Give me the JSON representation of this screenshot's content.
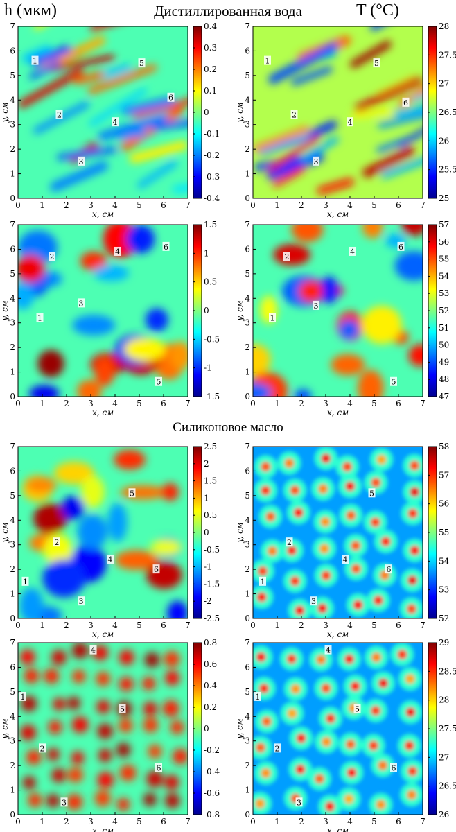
{
  "header": {
    "left_label": "h (мкм)",
    "section_water": "Дистиллированная вода",
    "right_label": "T (°C)",
    "section_oil": "Силиконовое масло"
  },
  "colors": {
    "colormap": [
      "#00008f",
      "#0000ff",
      "#0080ff",
      "#00ffff",
      "#80ff80",
      "#ffff00",
      "#ff8000",
      "#ff0000",
      "#800000"
    ],
    "frame": "#000000",
    "marker_fill": "#ffffff"
  },
  "chart_data": [
    {
      "type": "heatmap",
      "row": 1,
      "col": 1,
      "xlabel": "x, см",
      "ylabel": "y, см",
      "xlim": [
        0,
        7
      ],
      "ylim": [
        0,
        7
      ],
      "xticks": [
        "0",
        "1",
        "2",
        "3",
        "4",
        "5",
        "6",
        "7"
      ],
      "yticks": [
        "0",
        "1",
        "2",
        "3",
        "4",
        "5",
        "6",
        "7"
      ],
      "colorbar_ticks": [
        "0.4",
        "0.3",
        "0.2",
        "0.1",
        "0",
        "-0.1",
        "-0.2",
        "-0.3",
        "-0.4"
      ],
      "clim": [
        -0.4,
        0.4
      ],
      "pattern": "stripes",
      "markers": [
        {
          "label": "1",
          "x": 0.7,
          "y": 5.6
        },
        {
          "label": "2",
          "x": 1.7,
          "y": 3.4
        },
        {
          "label": "3",
          "x": 2.6,
          "y": 1.5
        },
        {
          "label": "4",
          "x": 4.0,
          "y": 3.1
        },
        {
          "label": "5",
          "x": 5.1,
          "y": 5.5
        },
        {
          "label": "6",
          "x": 6.3,
          "y": 4.1
        }
      ]
    },
    {
      "type": "heatmap",
      "row": 1,
      "col": 2,
      "xlabel": "x, см",
      "ylabel": "y, см",
      "xlim": [
        0,
        7
      ],
      "ylim": [
        0,
        7
      ],
      "xticks": [
        "0",
        "1",
        "2",
        "3",
        "4",
        "5",
        "6",
        "7"
      ],
      "yticks": [
        "0",
        "1",
        "2",
        "3",
        "4",
        "5",
        "6",
        "7"
      ],
      "colorbar_ticks": [
        "28",
        "27.5",
        "27",
        "26.5",
        "26",
        "25.5",
        "25"
      ],
      "clim": [
        25,
        28
      ],
      "pattern": "stripes",
      "markers": [
        {
          "label": "1",
          "x": 0.6,
          "y": 5.6
        },
        {
          "label": "2",
          "x": 1.7,
          "y": 3.4
        },
        {
          "label": "3",
          "x": 2.6,
          "y": 1.5
        },
        {
          "label": "4",
          "x": 4.0,
          "y": 3.1
        },
        {
          "label": "5",
          "x": 5.1,
          "y": 5.5
        },
        {
          "label": "6",
          "x": 6.3,
          "y": 3.9
        }
      ]
    },
    {
      "type": "heatmap",
      "row": 2,
      "col": 1,
      "xlabel": "x, см",
      "ylabel": "y, см",
      "xlim": [
        0,
        7
      ],
      "ylim": [
        0,
        7
      ],
      "xticks": [
        "0",
        "1",
        "2",
        "3",
        "4",
        "5",
        "6",
        "7"
      ],
      "yticks": [
        "0",
        "1",
        "2",
        "3",
        "4",
        "5",
        "6",
        "7"
      ],
      "colorbar_ticks": [
        "1.5",
        "1",
        "0.5",
        "0",
        "-0.5",
        "-1",
        "-1.5"
      ],
      "clim": [
        -1.5,
        1.5
      ],
      "pattern": "blobs",
      "markers": [
        {
          "label": "1",
          "x": 0.9,
          "y": 3.2
        },
        {
          "label": "2",
          "x": 1.4,
          "y": 5.7
        },
        {
          "label": "3",
          "x": 2.6,
          "y": 3.8
        },
        {
          "label": "4",
          "x": 4.1,
          "y": 5.9
        },
        {
          "label": "5",
          "x": 5.8,
          "y": 0.6
        },
        {
          "label": "6",
          "x": 6.1,
          "y": 6.1
        }
      ]
    },
    {
      "type": "heatmap",
      "row": 2,
      "col": 2,
      "xlabel": "x, см",
      "ylabel": "y, см",
      "xlim": [
        0,
        7
      ],
      "ylim": [
        0,
        7
      ],
      "xticks": [
        "0",
        "1",
        "2",
        "3",
        "4",
        "5",
        "6",
        "7"
      ],
      "yticks": [
        "0",
        "1",
        "2",
        "3",
        "4",
        "5",
        "6",
        "7"
      ],
      "colorbar_ticks": [
        "57",
        "56",
        "55",
        "54",
        "53",
        "52",
        "51",
        "50",
        "49",
        "48",
        "47"
      ],
      "clim": [
        47,
        57
      ],
      "pattern": "blobs",
      "markers": [
        {
          "label": "1",
          "x": 0.8,
          "y": 3.2
        },
        {
          "label": "2",
          "x": 1.4,
          "y": 5.7
        },
        {
          "label": "3",
          "x": 2.6,
          "y": 3.7
        },
        {
          "label": "4",
          "x": 4.1,
          "y": 5.9
        },
        {
          "label": "5",
          "x": 5.8,
          "y": 0.6
        },
        {
          "label": "6",
          "x": 6.1,
          "y": 6.1
        }
      ]
    },
    {
      "type": "heatmap",
      "row": 3,
      "col": 1,
      "xlabel": "x, см",
      "ylabel": "y, см",
      "xlim": [
        0,
        7
      ],
      "ylim": [
        0,
        7
      ],
      "xticks": [
        "0",
        "1",
        "2",
        "3",
        "4",
        "5",
        "6",
        "7"
      ],
      "yticks": [
        "0",
        "1",
        "2",
        "3",
        "4",
        "5",
        "6",
        "7"
      ],
      "colorbar_ticks": [
        "2.5",
        "2",
        "1.5",
        "1",
        "0.5",
        "0",
        "-0.5",
        "-1",
        "-1.5",
        "-2",
        "-2.5"
      ],
      "clim": [
        -2.5,
        2.5
      ],
      "pattern": "blobs",
      "markers": [
        {
          "label": "1",
          "x": 0.3,
          "y": 1.5
        },
        {
          "label": "2",
          "x": 1.6,
          "y": 3.1
        },
        {
          "label": "3",
          "x": 2.6,
          "y": 0.7
        },
        {
          "label": "4",
          "x": 3.8,
          "y": 2.4
        },
        {
          "label": "5",
          "x": 4.7,
          "y": 5.1
        },
        {
          "label": "6",
          "x": 5.7,
          "y": 2.0
        }
      ]
    },
    {
      "type": "heatmap",
      "row": 3,
      "col": 2,
      "xlabel": "x, см",
      "ylabel": "y, см",
      "xlim": [
        0,
        7
      ],
      "ylim": [
        0,
        7
      ],
      "xticks": [
        "0",
        "1",
        "2",
        "3",
        "4",
        "5",
        "6",
        "7"
      ],
      "yticks": [
        "0",
        "1",
        "2",
        "3",
        "4",
        "5",
        "6",
        "7"
      ],
      "colorbar_ticks": [
        "58",
        "57",
        "56",
        "55",
        "54",
        "53",
        "52"
      ],
      "clim": [
        52,
        58
      ],
      "pattern": "cells",
      "markers": [
        {
          "label": "1",
          "x": 0.4,
          "y": 1.5
        },
        {
          "label": "2",
          "x": 1.5,
          "y": 3.1
        },
        {
          "label": "3",
          "x": 2.5,
          "y": 0.7
        },
        {
          "label": "4",
          "x": 3.8,
          "y": 2.4
        },
        {
          "label": "5",
          "x": 4.9,
          "y": 5.1
        },
        {
          "label": "6",
          "x": 5.6,
          "y": 2.0
        }
      ]
    },
    {
      "type": "heatmap",
      "row": 4,
      "col": 1,
      "xlabel": "x, см",
      "ylabel": "y, см",
      "xlim": [
        0,
        7
      ],
      "ylim": [
        0,
        7
      ],
      "xticks": [
        "0",
        "1",
        "2",
        "3",
        "4",
        "5",
        "6",
        "7"
      ],
      "yticks": [
        "0",
        "1",
        "2",
        "3",
        "4",
        "5",
        "6",
        "7"
      ],
      "colorbar_ticks": [
        "0.8",
        "0.6",
        "0.4",
        "0.2",
        "0",
        "-0.2",
        "-0.4",
        "-0.6",
        "-0.8"
      ],
      "clim": [
        -0.8,
        0.8
      ],
      "pattern": "dots",
      "markers": [
        {
          "label": "1",
          "x": 0.2,
          "y": 4.8
        },
        {
          "label": "2",
          "x": 1.0,
          "y": 2.7
        },
        {
          "label": "3",
          "x": 1.9,
          "y": 0.5
        },
        {
          "label": "4",
          "x": 3.1,
          "y": 6.7
        },
        {
          "label": "5",
          "x": 4.3,
          "y": 4.3
        },
        {
          "label": "6",
          "x": 5.8,
          "y": 1.9
        }
      ]
    },
    {
      "type": "heatmap",
      "row": 4,
      "col": 2,
      "xlabel": "x, см",
      "ylabel": "y, см",
      "xlim": [
        0,
        7
      ],
      "ylim": [
        0,
        7
      ],
      "xticks": [
        "0",
        "1",
        "2",
        "3",
        "4",
        "5",
        "6",
        "7"
      ],
      "yticks": [
        "0",
        "1",
        "2",
        "3",
        "4",
        "5",
        "6",
        "7"
      ],
      "colorbar_ticks": [
        "29",
        "28.5",
        "28",
        "27.5",
        "27",
        "26.5",
        "26"
      ],
      "clim": [
        26,
        29
      ],
      "pattern": "cells",
      "markers": [
        {
          "label": "1",
          "x": 0.2,
          "y": 4.8
        },
        {
          "label": "2",
          "x": 1.0,
          "y": 2.7
        },
        {
          "label": "3",
          "x": 1.9,
          "y": 0.5
        },
        {
          "label": "4",
          "x": 3.1,
          "y": 6.7
        },
        {
          "label": "5",
          "x": 4.3,
          "y": 4.3
        },
        {
          "label": "6",
          "x": 5.8,
          "y": 1.9
        }
      ]
    }
  ]
}
